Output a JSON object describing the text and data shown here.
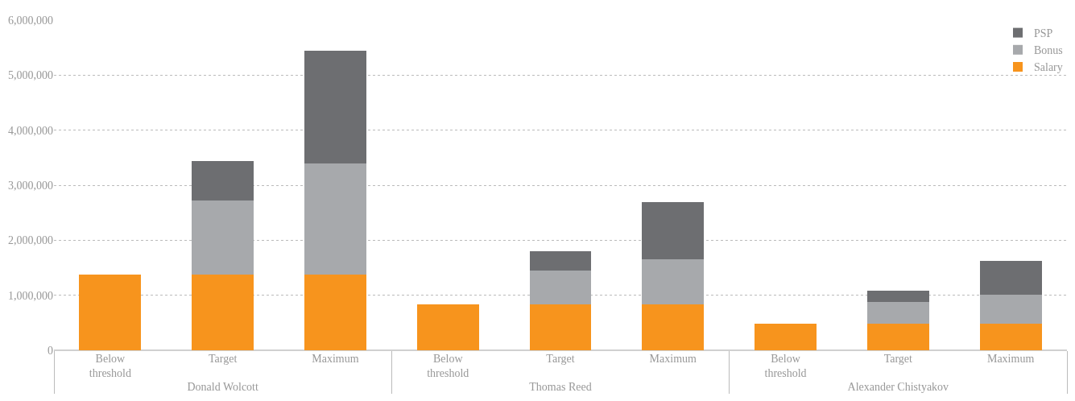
{
  "chart_data": {
    "type": "bar",
    "stacked": true,
    "categories": [
      "Below threshold",
      "Target",
      "Maximum",
      "Below threshold",
      "Target",
      "Maximum",
      "Below threshold",
      "Target",
      "Maximum"
    ],
    "series": [
      {
        "name": "Salary",
        "color": "#f7941d",
        "values": [
          1370000,
          1370000,
          1370000,
          830000,
          830000,
          830000,
          490000,
          490000,
          490000
        ]
      },
      {
        "name": "Bonus",
        "color": "#a7a9ac",
        "values": [
          0,
          1350000,
          2030000,
          0,
          620000,
          830000,
          0,
          390000,
          520000
        ]
      },
      {
        "name": "PSP",
        "color": "#6d6e71",
        "values": [
          0,
          720000,
          2050000,
          0,
          350000,
          1030000,
          0,
          210000,
          620000
        ]
      }
    ],
    "annotations": [
      "Donald Wolcott",
      "Thomas Reed",
      "Alexander Chistyakov"
    ],
    "ylim": [
      0,
      6000000
    ],
    "yticks": [
      {
        "value": 0,
        "label": "0"
      },
      {
        "value": 1000000,
        "label": "1,000,000"
      },
      {
        "value": 2000000,
        "label": "2,000,000"
      },
      {
        "value": 3000000,
        "label": "3,000,000"
      },
      {
        "value": 4000000,
        "label": "4,000,000"
      },
      {
        "value": 5000000,
        "label": "5,000,000"
      },
      {
        "value": 6000000,
        "label": "6,000,000"
      }
    ],
    "grid": "y",
    "legend": "top right"
  }
}
